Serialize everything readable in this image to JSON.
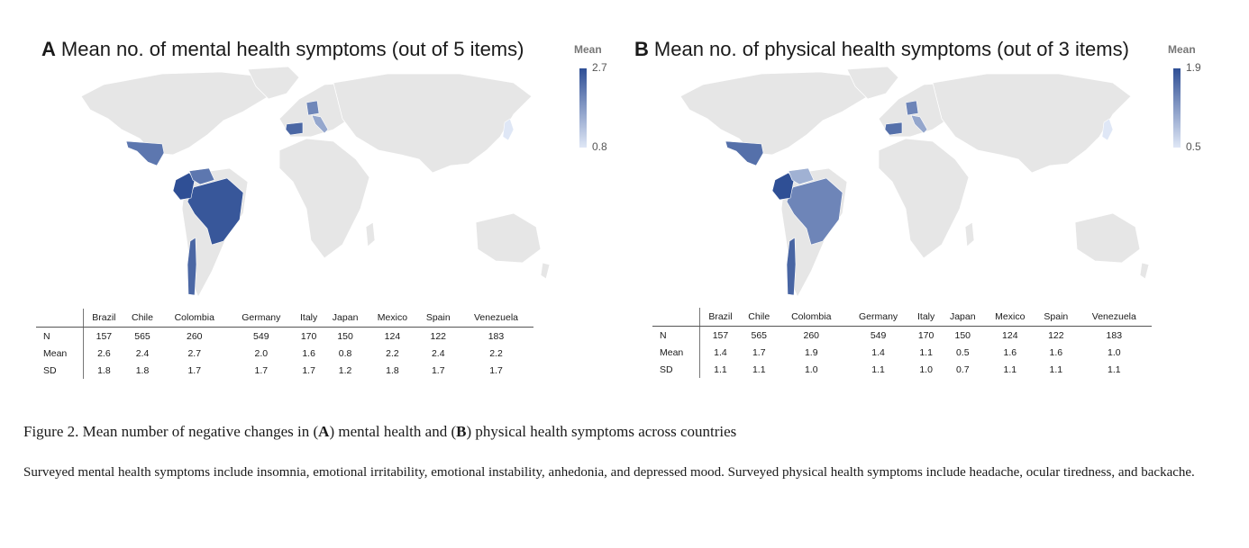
{
  "legend_title": "Mean",
  "panels": [
    {
      "letter": "A",
      "title": "Mean no. of mental health symptoms (out of 5 items)",
      "legend_max": "2.7",
      "legend_min": "0.8",
      "scale": [
        0.8,
        2.7
      ],
      "countries": [
        "Brazil",
        "Chile",
        "Colombia",
        "Germany",
        "Italy",
        "Japan",
        "Mexico",
        "Spain",
        "Venezuela"
      ],
      "rows": [
        {
          "label": "N",
          "values": [
            "157",
            "565",
            "260",
            "549",
            "170",
            "150",
            "124",
            "122",
            "183"
          ]
        },
        {
          "label": "Mean",
          "values": [
            "2.6",
            "2.4",
            "2.7",
            "2.0",
            "1.6",
            "0.8",
            "2.2",
            "2.4",
            "2.2"
          ]
        },
        {
          "label": "SD",
          "values": [
            "1.8",
            "1.8",
            "1.7",
            "1.7",
            "1.7",
            "1.2",
            "1.8",
            "1.7",
            "1.7"
          ]
        }
      ]
    },
    {
      "letter": "B",
      "title": "Mean no. of physical health symptoms (out of 3 items)",
      "legend_max": "1.9",
      "legend_min": "0.5",
      "scale": [
        0.5,
        1.9
      ],
      "countries": [
        "Brazil",
        "Chile",
        "Colombia",
        "Germany",
        "Italy",
        "Japan",
        "Mexico",
        "Spain",
        "Venezuela"
      ],
      "rows": [
        {
          "label": "N",
          "values": [
            "157",
            "565",
            "260",
            "549",
            "170",
            "150",
            "124",
            "122",
            "183"
          ]
        },
        {
          "label": "Mean",
          "values": [
            "1.4",
            "1.7",
            "1.9",
            "1.4",
            "1.1",
            "0.5",
            "1.6",
            "1.6",
            "1.0"
          ]
        },
        {
          "label": "SD",
          "values": [
            "1.1",
            "1.1",
            "1.0",
            "1.1",
            "1.0",
            "0.7",
            "1.1",
            "1.1",
            "1.1"
          ]
        }
      ]
    }
  ],
  "colors": {
    "land": "#e6e6e6",
    "high": "#2f4f95",
    "low": "#dfe7f6"
  },
  "caption": {
    "prefix": "Figure 2. Mean number of negative changes in (",
    "a": "A",
    "mid": ") mental health and (",
    "b": "B",
    "suffix": ") physical health symptoms across countries"
  },
  "note": "Surveyed mental health symptoms include insomnia, emotional irritability, emotional instability, anhedonia, and depressed mood. Surveyed physical health symptoms include headache, ocular tiredness, and backache."
}
